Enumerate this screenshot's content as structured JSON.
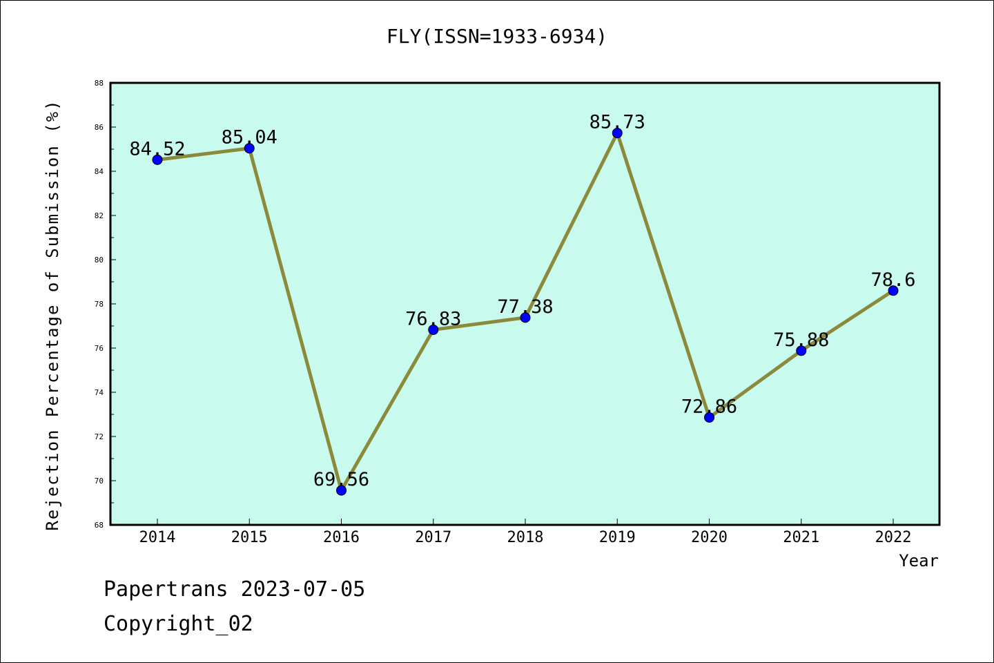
{
  "chart_data": {
    "type": "line",
    "title": "FLY(ISSN=1933-6934)",
    "xlabel": "Year",
    "ylabel": "Rejection Percentage of Submission (%)",
    "categories": [
      "2014",
      "2015",
      "2016",
      "2017",
      "2018",
      "2019",
      "2020",
      "2021",
      "2022"
    ],
    "series": [
      {
        "values": [
          84.52,
          85.04,
          69.56,
          76.83,
          77.38,
          85.73,
          72.86,
          75.88,
          78.6
        ],
        "labels": [
          "84.52",
          "85.04",
          "69.56",
          "76.83",
          "77.38",
          "85.73",
          "72.86",
          "75.88",
          "78.6"
        ]
      }
    ],
    "ylim": [
      68,
      88
    ],
    "yticks": [
      "68",
      "70",
      "72",
      "74",
      "76",
      "78",
      "80",
      "82",
      "84",
      "86",
      "88"
    ],
    "grid": false,
    "colors": {
      "plot_background": "#c8faee",
      "line": "#8b8a3a",
      "marker": "#0000ff"
    }
  },
  "footer": {
    "line1": "Papertrans 2023-07-05",
    "line2": "Copyright_02"
  }
}
